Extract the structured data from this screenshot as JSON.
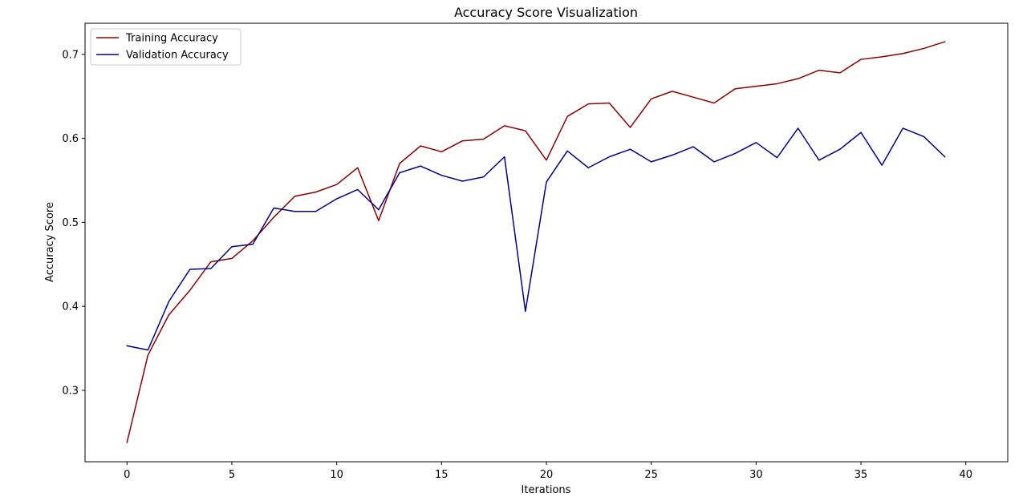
{
  "chart_data": {
    "type": "line",
    "title": "Accuracy Score Visualization",
    "xlabel": "Iterations",
    "ylabel": "Accuracy Score",
    "xlim": [
      -2,
      42
    ],
    "ylim": [
      0.215,
      0.737
    ],
    "xticks": [
      0,
      5,
      10,
      15,
      20,
      25,
      30,
      35,
      40
    ],
    "yticks": [
      0.3,
      0.4,
      0.5,
      0.6,
      0.7
    ],
    "grid": false,
    "legend_position": "top-left",
    "x": [
      0,
      1,
      2,
      3,
      4,
      5,
      6,
      7,
      8,
      9,
      10,
      11,
      12,
      13,
      14,
      15,
      16,
      17,
      18,
      19,
      20,
      21,
      22,
      23,
      24,
      25,
      26,
      27,
      28,
      29,
      30,
      31,
      32,
      33,
      34,
      35,
      36,
      37,
      38,
      39
    ],
    "series": [
      {
        "name": "Training Accuracy",
        "color": "#8b0000",
        "values": [
          0.238,
          0.342,
          0.39,
          0.419,
          0.453,
          0.457,
          0.478,
          0.506,
          0.531,
          0.536,
          0.545,
          0.565,
          0.502,
          0.57,
          0.591,
          0.584,
          0.597,
          0.599,
          0.615,
          0.609,
          0.574,
          0.626,
          0.641,
          0.642,
          0.613,
          0.647,
          0.656,
          0.649,
          0.642,
          0.659,
          0.662,
          0.665,
          0.671,
          0.681,
          0.678,
          0.694,
          0.697,
          0.701,
          0.707,
          0.715
        ]
      },
      {
        "name": "Validation Accuracy",
        "color": "#00008b",
        "values": [
          0.353,
          0.348,
          0.406,
          0.444,
          0.445,
          0.471,
          0.474,
          0.517,
          0.513,
          0.513,
          0.528,
          0.539,
          0.515,
          0.559,
          0.567,
          0.556,
          0.549,
          0.554,
          0.578,
          0.394,
          0.548,
          0.585,
          0.565,
          0.578,
          0.587,
          0.572,
          0.58,
          0.59,
          0.572,
          0.582,
          0.595,
          0.577,
          0.612,
          0.574,
          0.587,
          0.607,
          0.568,
          0.612,
          0.602,
          0.578
        ]
      }
    ]
  }
}
